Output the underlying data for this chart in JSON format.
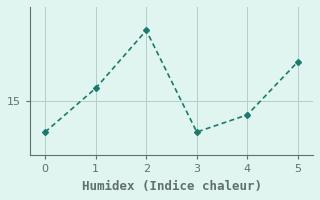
{
  "x": [
    0,
    1,
    2,
    3,
    4,
    5
  ],
  "y": [
    13.0,
    15.8,
    19.5,
    13.0,
    14.1,
    17.5
  ],
  "line_color": "#1a7a6e",
  "marker": "D",
  "marker_size": 3,
  "linewidth": 1.2,
  "xlabel": "Humidex (Indice chaleur)",
  "xlabel_fontsize": 9,
  "background_color": "#e0f5f0",
  "grid_color": "#b0cfc8",
  "axis_color": "#607070",
  "tick_color": "#607070",
  "ylim": [
    11.5,
    21.0
  ],
  "xlim": [
    -0.3,
    5.3
  ],
  "yticks": [
    15
  ],
  "xticks": [
    0,
    1,
    2,
    3,
    4,
    5
  ],
  "tick_fontsize": 8
}
